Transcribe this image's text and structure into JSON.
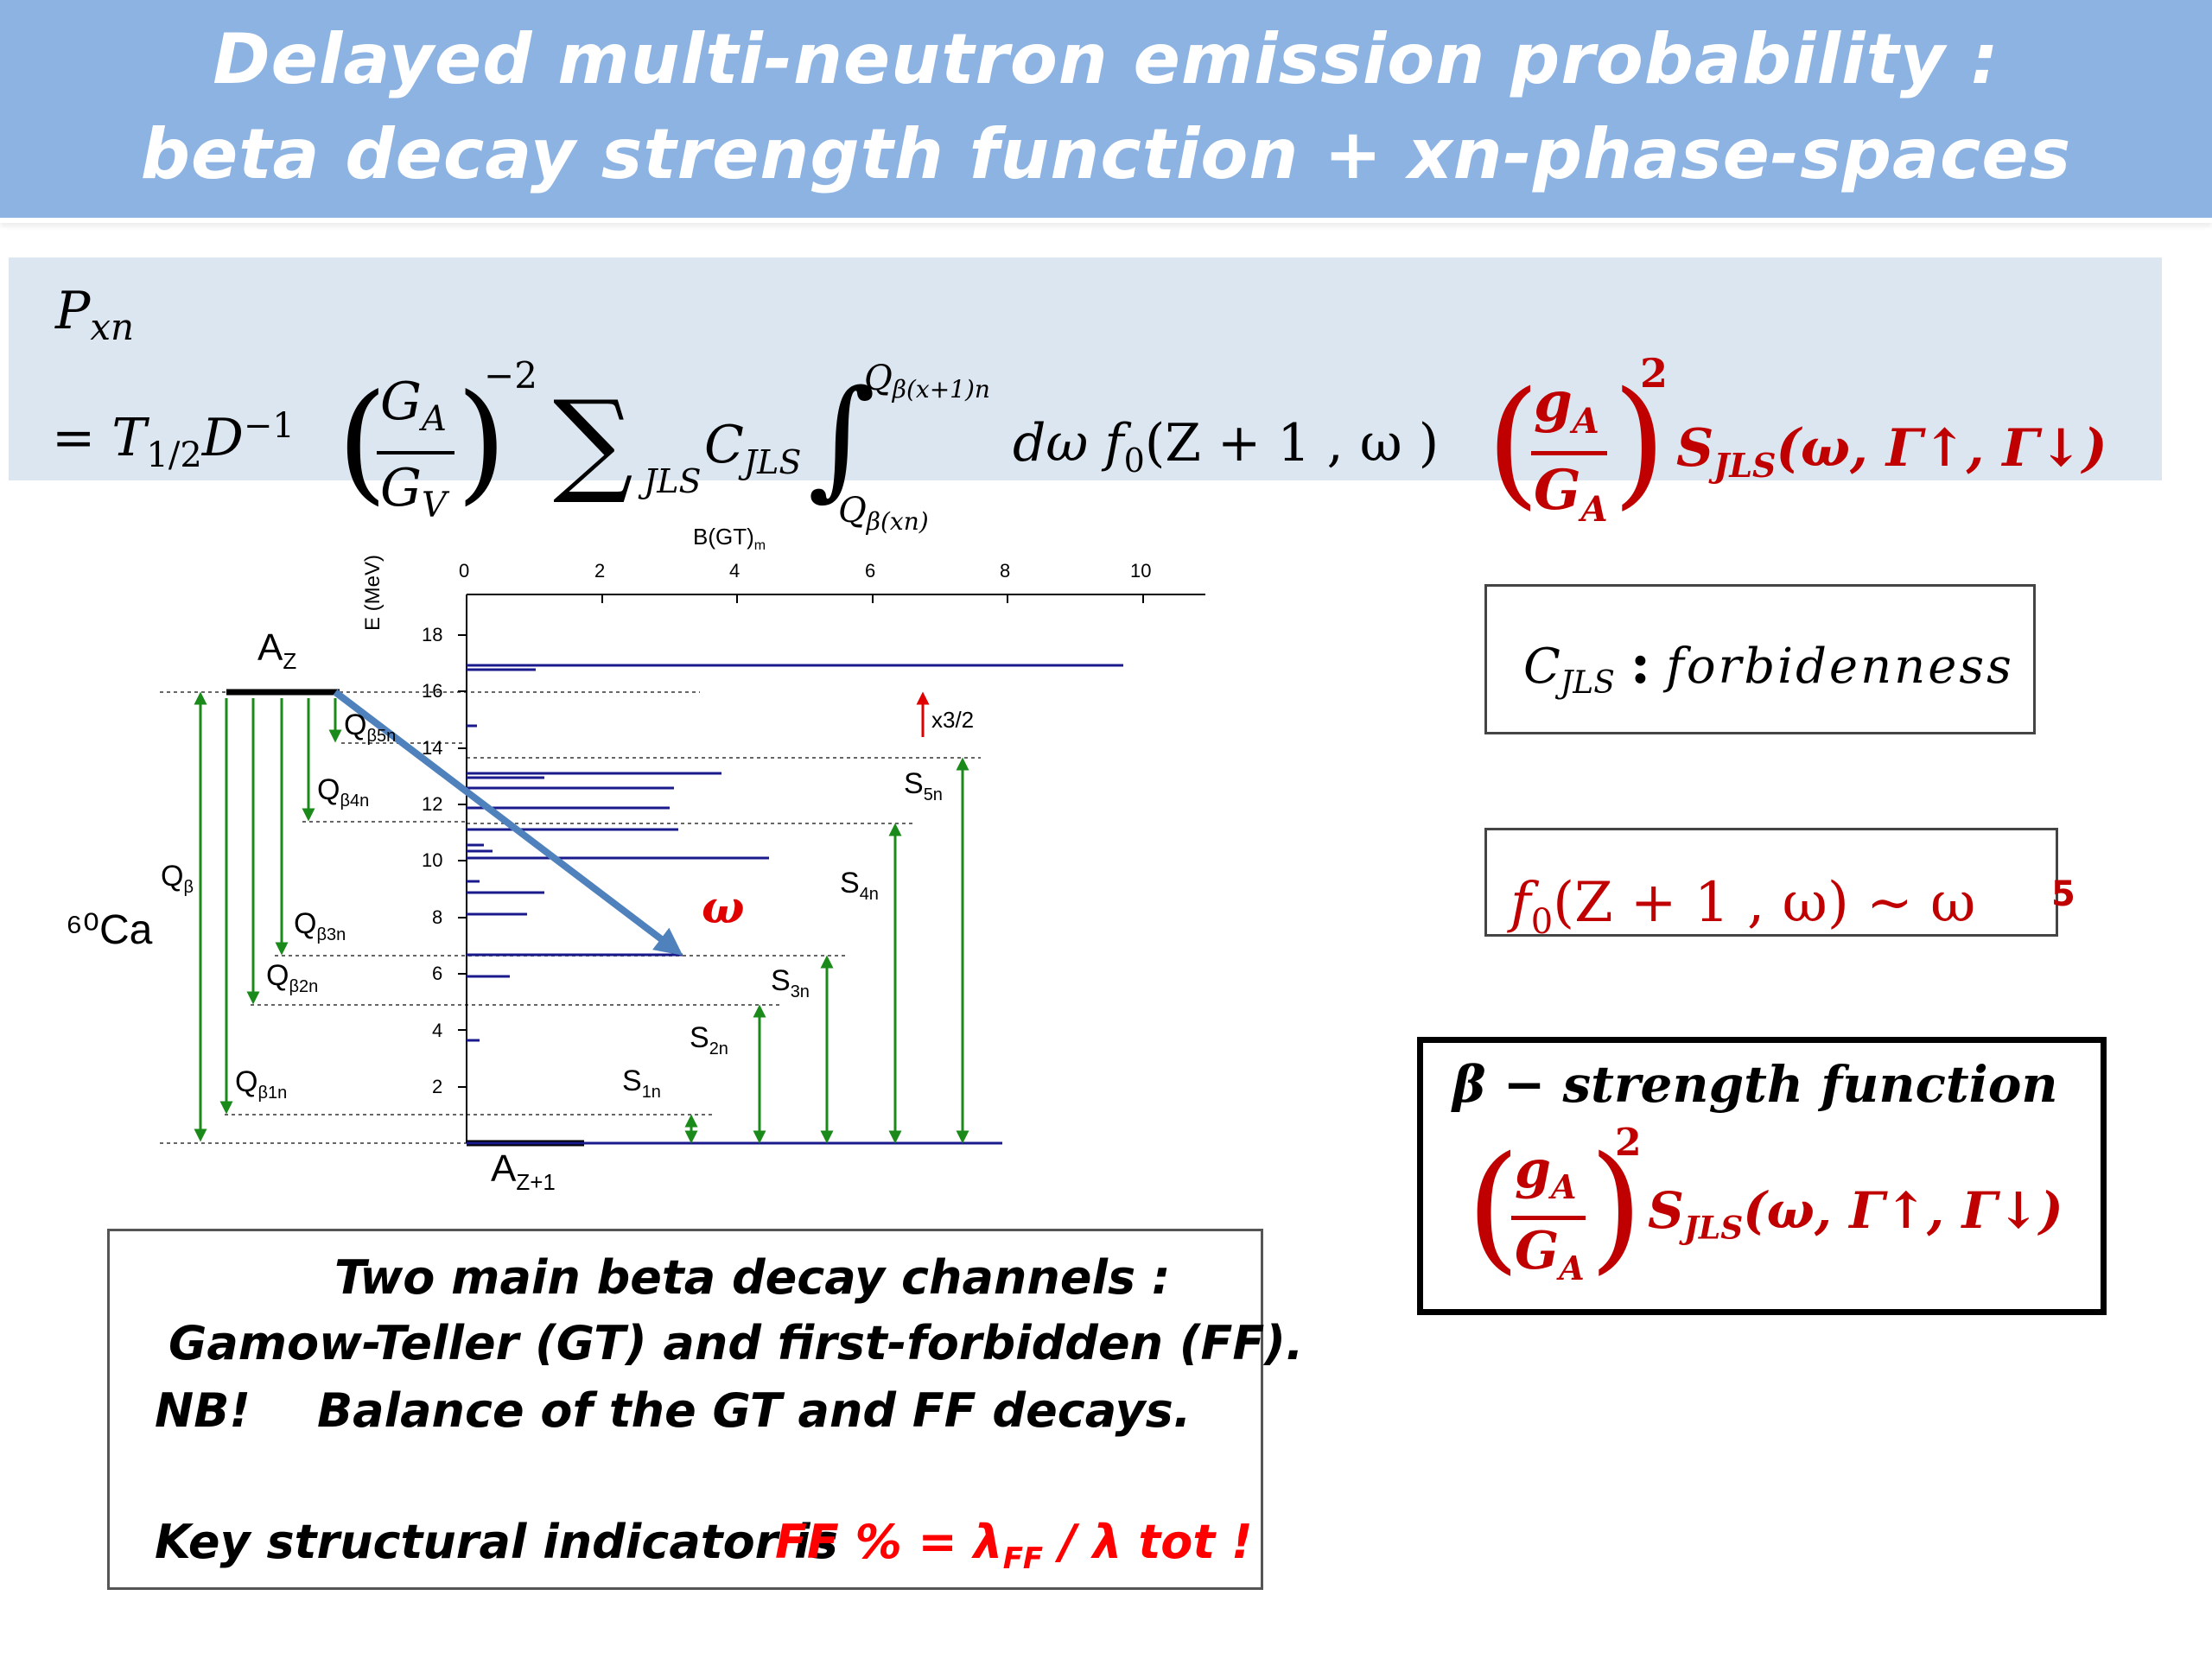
{
  "title": {
    "line1": "Delayed multi-neutron emission probability :",
    "line2": "beta decay strength function + xn-phase-spaces"
  },
  "formula": {
    "lhs": "P",
    "lhs_sub": "xn",
    "equals": "=",
    "t_half": "T",
    "t_half_sub": "1/2",
    "d_inv": "D",
    "d_inv_sup": "−1",
    "ratio_num": "G",
    "ratio_num_sub": "A",
    "ratio_den": "G",
    "ratio_den_sub": "V",
    "ratio_exp": "−2",
    "sum": "∑",
    "sum_sub": "JLS",
    "coef": "C",
    "coef_sub": "JLS",
    "integral": "∫",
    "upper_limit": "Q",
    "upper_limit_sub": "β(x+1)n",
    "lower_limit": "Q",
    "lower_limit_sub": "β(xn)",
    "integrand": "dω f",
    "integrand_sub": "0",
    "integrand_args": "(Z + 1 , ω   )",
    "gA_num": "g",
    "gA_num_sub": "A",
    "gA_den": "G",
    "gA_den_sub": "A",
    "gA_exp": "2",
    "strength": "S",
    "strength_sub": "JLS",
    "strength_args": "(ω, Γ↑, Γ↓)"
  },
  "diagram": {
    "nucleus": "⁶⁰Ca",
    "parent_label": "A",
    "parent_sub": "Z",
    "daughter_label": "A",
    "daughter_sub": "Z+1",
    "omega": "ω",
    "x_axis_title": "B(GT)",
    "x_axis_title_sub": "m",
    "y_axis_title": "E",
    "y_axis_title_rest": "(MeV)",
    "x_ticks": [
      "0",
      "2",
      "4",
      "6",
      "8",
      "10"
    ],
    "y_ticks": [
      "2",
      "4",
      "6",
      "8",
      "10",
      "12",
      "14",
      "16",
      "18"
    ],
    "scale_note": "x3/2",
    "q_labels": [
      {
        "main": "Q",
        "sub": "β5n"
      },
      {
        "main": "Q",
        "sub": "β4n"
      },
      {
        "main": "Q",
        "sub": "β"
      },
      {
        "main": "Q",
        "sub": "β3n"
      },
      {
        "main": "Q",
        "sub": "β2n"
      },
      {
        "main": "Q",
        "sub": "β1n"
      }
    ],
    "s_labels": [
      {
        "main": "S",
        "sub": "5n"
      },
      {
        "main": "S",
        "sub": "4n"
      },
      {
        "main": "S",
        "sub": "3n"
      },
      {
        "main": "S",
        "sub": "2n"
      },
      {
        "main": "S",
        "sub": "1n"
      }
    ],
    "colors": {
      "arrows": "#1a8a1a",
      "lines": "#1a1a8c",
      "diag_arrow": "#4f81bd",
      "accent": "#c00000"
    }
  },
  "cjls_box": {
    "symbol": "C",
    "symbol_sub": "JLS",
    "colon": ":",
    "text": "forbidenness"
  },
  "f0_box": {
    "text": "f",
    "text_sub": "0",
    "args": "(Z + 1 , ω) ~ ω",
    "power": "5"
  },
  "beta_box": {
    "heading": "β − strength function",
    "num": "g",
    "num_sub": "A",
    "den": "G",
    "den_sub": "A",
    "exp": "2",
    "strength": "S",
    "strength_sub": "JLS",
    "strength_args": "(ω, Γ↑, Γ↓)"
  },
  "note": {
    "line1": "Two main beta decay channels :",
    "line2": "Gamow-Teller  (GT)  and first-forbidden (FF).",
    "line3_a": "NB!",
    "line3_b": "Balance  of the GT and FF decays.",
    "line4_a": "Key structural indicator  is",
    "line4_b": "FF %  = λ",
    "line4_sub": "FF",
    "line4_c": " / λ tot !"
  }
}
